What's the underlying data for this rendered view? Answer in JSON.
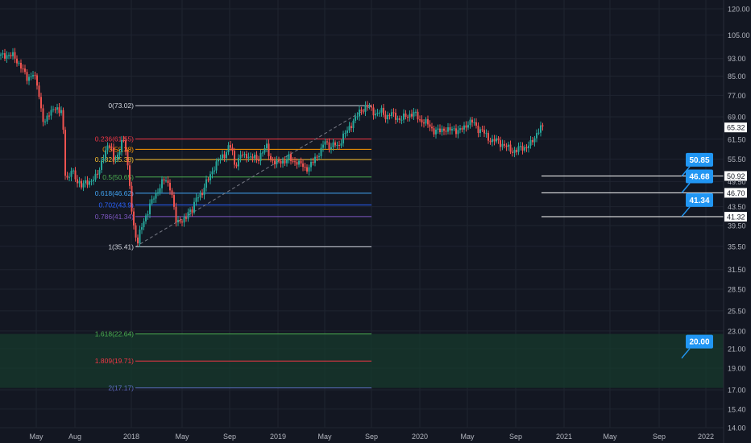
{
  "theme": {
    "background": "#131722",
    "grid": "#1f2430",
    "axis_text": "#b2b5be",
    "up_color": "#26a69a",
    "down_color": "#ef5350",
    "callout_color": "#2196f3",
    "zone_color": "#173a2c"
  },
  "chart_data": {
    "type": "candlestick",
    "y_scale": "log",
    "y_range": [
      14.0,
      121.0
    ],
    "y_ticks": [
      "120.00",
      "105.00",
      "93.00",
      "85.00",
      "77.00",
      "69.00",
      "61.50",
      "55.50",
      "49.50",
      "43.50",
      "39.50",
      "35.50",
      "31.50",
      "28.50",
      "25.50",
      "23.00",
      "21.00",
      "19.00",
      "17.00",
      "15.40",
      "14.00"
    ],
    "x_ticks": [
      "May",
      "Aug",
      "2018",
      "May",
      "Sep",
      "2019",
      "May",
      "Sep",
      "2020",
      "May",
      "Sep",
      "2021",
      "May",
      "Sep",
      "2022"
    ],
    "last_price": "65.32",
    "price_levels": [
      {
        "value": 50.92,
        "label": "50.92"
      },
      {
        "value": 46.7,
        "label": "46.70"
      },
      {
        "value": 41.32,
        "label": "41.32"
      }
    ],
    "callouts": [
      {
        "value": 50.85,
        "label": "50.85"
      },
      {
        "value": 46.68,
        "label": "46.68"
      },
      {
        "value": 41.34,
        "label": "41.34"
      },
      {
        "value": 20.0,
        "label": "20.00"
      }
    ],
    "fib_levels": [
      {
        "label": "0(73.02)",
        "value": 73.02,
        "color": "#d1d4dc"
      },
      {
        "label": "0.236(61.55)",
        "value": 61.55,
        "color": "#f23645"
      },
      {
        "label": "0.3(58.38)",
        "value": 58.38,
        "color": "#ff9800"
      },
      {
        "label": "0.382(55.38)",
        "value": 55.38,
        "color": "#fbc02d"
      },
      {
        "label": "0.5(50.65)",
        "value": 50.65,
        "color": "#4caf50"
      },
      {
        "label": "0.618(46.62)",
        "value": 46.62,
        "color": "#42a5f5"
      },
      {
        "label": "0.702(43.9)",
        "value": 43.9,
        "color": "#2962ff"
      },
      {
        "label": "0.786(41.34)",
        "value": 41.34,
        "color": "#7e57c2"
      },
      {
        "label": "1(35.41)",
        "value": 35.41,
        "color": "#d1d4dc"
      },
      {
        "label": "1.618(22.64)",
        "value": 22.64,
        "color": "#4caf50"
      },
      {
        "label": "1.809(19.71)",
        "value": 19.71,
        "color": "#f23645"
      },
      {
        "label": "2(17.17)",
        "value": 17.17,
        "color": "#5c6bc0"
      }
    ],
    "target_zone": {
      "top": 22.64,
      "bottom": 17.17
    },
    "price_path": [
      [
        0,
        94
      ],
      [
        8,
        95
      ],
      [
        16,
        94
      ],
      [
        24,
        90
      ],
      [
        32,
        84
      ],
      [
        40,
        86
      ],
      [
        46,
        80
      ],
      [
        50,
        72
      ],
      [
        54,
        66
      ],
      [
        60,
        70
      ],
      [
        66,
        73
      ],
      [
        72,
        70
      ],
      [
        76,
        72
      ],
      [
        80,
        52
      ],
      [
        84,
        49
      ],
      [
        88,
        53
      ],
      [
        94,
        50
      ],
      [
        100,
        48
      ],
      [
        106,
        50
      ],
      [
        112,
        49
      ],
      [
        118,
        51
      ],
      [
        124,
        54
      ],
      [
        128,
        56
      ],
      [
        132,
        59
      ],
      [
        136,
        61
      ],
      [
        140,
        55
      ],
      [
        146,
        56
      ],
      [
        150,
        62
      ],
      [
        154,
        60
      ],
      [
        158,
        52
      ],
      [
        162,
        44
      ],
      [
        166,
        38
      ],
      [
        170,
        36
      ],
      [
        174,
        39
      ],
      [
        178,
        41
      ],
      [
        182,
        42
      ],
      [
        186,
        44
      ],
      [
        190,
        46
      ],
      [
        194,
        47
      ],
      [
        198,
        48
      ],
      [
        202,
        50
      ],
      [
        206,
        50
      ],
      [
        210,
        48
      ],
      [
        214,
        44
      ],
      [
        218,
        40
      ],
      [
        222,
        41
      ],
      [
        226,
        40
      ],
      [
        230,
        41
      ],
      [
        234,
        43
      ],
      [
        238,
        43
      ],
      [
        242,
        45
      ],
      [
        246,
        46
      ],
      [
        250,
        47
      ],
      [
        254,
        49
      ],
      [
        258,
        50
      ],
      [
        262,
        52
      ],
      [
        266,
        54
      ],
      [
        270,
        55
      ],
      [
        274,
        56
      ],
      [
        278,
        57
      ],
      [
        282,
        59
      ],
      [
        286,
        59
      ],
      [
        290,
        54
      ],
      [
        294,
        55
      ],
      [
        298,
        57
      ],
      [
        302,
        56
      ],
      [
        306,
        57
      ],
      [
        310,
        56
      ],
      [
        314,
        56
      ],
      [
        318,
        55
      ],
      [
        322,
        57
      ],
      [
        326,
        58
      ],
      [
        330,
        59
      ],
      [
        334,
        56
      ],
      [
        338,
        55
      ],
      [
        342,
        54
      ],
      [
        346,
        55
      ],
      [
        350,
        55
      ],
      [
        354,
        55
      ],
      [
        358,
        56
      ],
      [
        362,
        55
      ],
      [
        366,
        55
      ],
      [
        370,
        54
      ],
      [
        374,
        54
      ],
      [
        378,
        53
      ],
      [
        382,
        53
      ],
      [
        386,
        54
      ],
      [
        390,
        56
      ],
      [
        394,
        57
      ],
      [
        398,
        58
      ],
      [
        402,
        61
      ],
      [
        406,
        60
      ],
      [
        410,
        59
      ],
      [
        414,
        60
      ],
      [
        418,
        59
      ],
      [
        422,
        61
      ],
      [
        426,
        63
      ],
      [
        430,
        64
      ],
      [
        434,
        66
      ],
      [
        438,
        68
      ],
      [
        442,
        69
      ],
      [
        446,
        71
      ],
      [
        450,
        72
      ],
      [
        454,
        73
      ],
      [
        458,
        72
      ],
      [
        462,
        71
      ],
      [
        466,
        70
      ],
      [
        472,
        71
      ],
      [
        478,
        69
      ],
      [
        484,
        70
      ],
      [
        490,
        69
      ],
      [
        496,
        68
      ],
      [
        502,
        69
      ],
      [
        508,
        70
      ],
      [
        514,
        70
      ],
      [
        520,
        68
      ],
      [
        526,
        67
      ],
      [
        532,
        66
      ],
      [
        538,
        64
      ],
      [
        544,
        64
      ],
      [
        550,
        65
      ],
      [
        556,
        64
      ],
      [
        562,
        65
      ],
      [
        568,
        64
      ],
      [
        574,
        65
      ],
      [
        580,
        67
      ],
      [
        586,
        67
      ],
      [
        592,
        65
      ],
      [
        598,
        64
      ],
      [
        604,
        62
      ],
      [
        610,
        61
      ],
      [
        616,
        61
      ],
      [
        622,
        60
      ],
      [
        628,
        59
      ],
      [
        634,
        58
      ],
      [
        640,
        58
      ],
      [
        646,
        59
      ],
      [
        652,
        59
      ],
      [
        658,
        60
      ],
      [
        662,
        62
      ],
      [
        666,
        64
      ],
      [
        670,
        65
      ],
      [
        674,
        65
      ]
    ]
  }
}
